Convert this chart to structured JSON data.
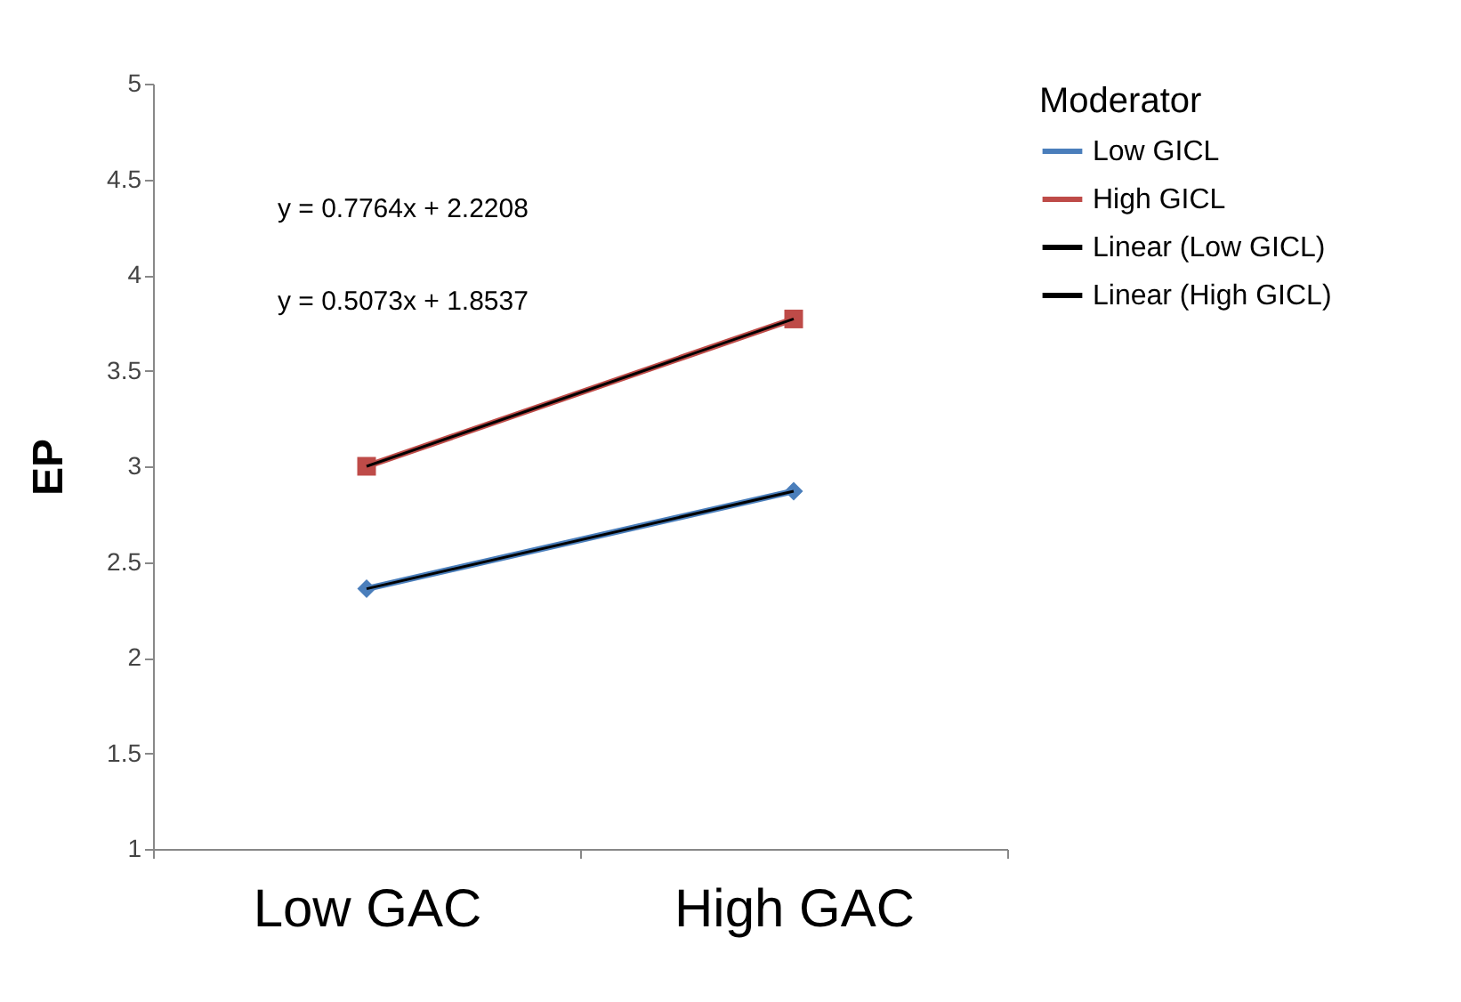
{
  "chart_data": {
    "type": "line",
    "ylabel": "EP",
    "legend_title": "Moderator",
    "legend": "right",
    "grid": false,
    "categories": [
      "Low GAC",
      "High GAC"
    ],
    "ylim": [
      1,
      5
    ],
    "yticks": [
      1,
      1.5,
      2,
      2.5,
      3,
      3.5,
      4,
      4.5,
      5
    ],
    "series": [
      {
        "name": "Low GICL",
        "color": "#4a7ebb",
        "values": [
          2.36,
          2.87
        ],
        "marker": "diamond"
      },
      {
        "name": "High GICL",
        "color": "#be4b48",
        "values": [
          3.0,
          3.77
        ],
        "marker": "square"
      },
      {
        "name": "Linear (Low GICL)",
        "color": "#000000",
        "values": [
          2.36,
          2.87
        ],
        "marker": "none"
      },
      {
        "name": "Linear (High GICL)",
        "color": "#000000",
        "values": [
          3.0,
          3.77
        ],
        "marker": "none"
      }
    ],
    "annotations": [
      "y = 0.7764x + 2.2208",
      "y = 0.5073x + 1.8537"
    ]
  }
}
